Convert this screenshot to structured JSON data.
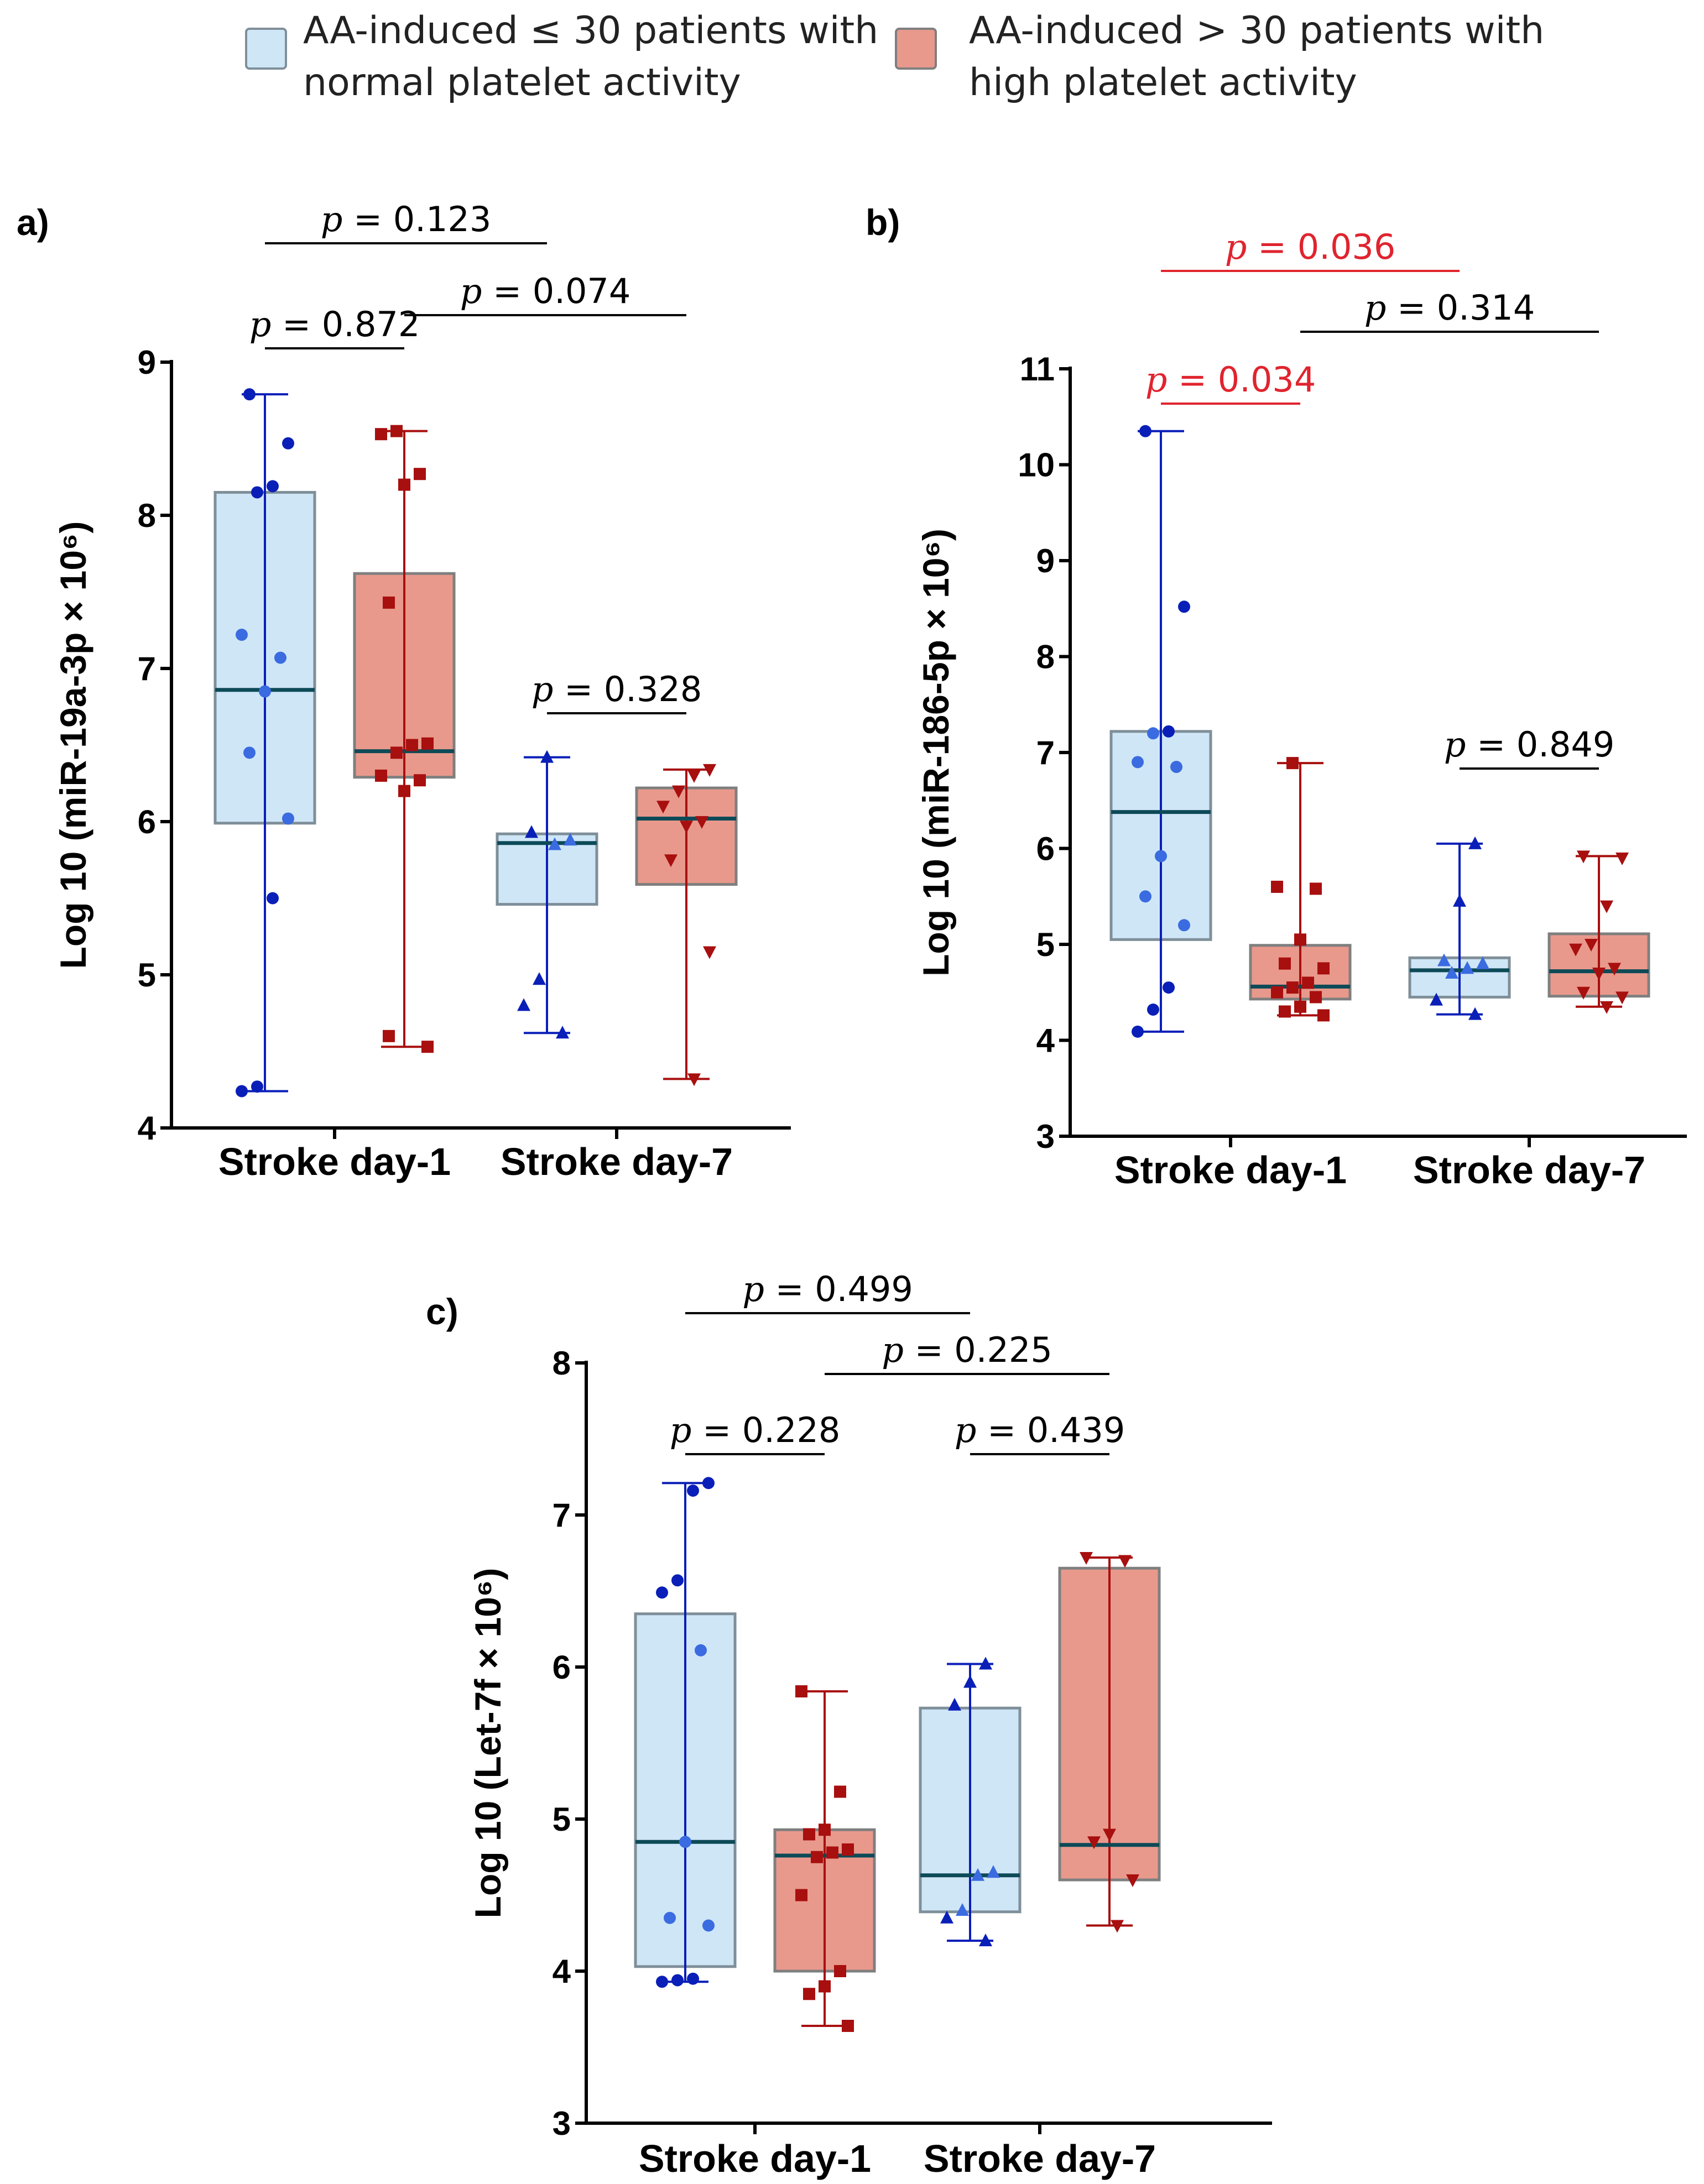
{
  "legend": {
    "items": [
      {
        "line1": "AA-induced ≤ 30 patients with",
        "line2": "normal platelet activity",
        "fill": "#cfe6f7",
        "stroke": "#7f8f99",
        "point_color": "#0a1fb8"
      },
      {
        "line1": "AA-induced > 30 patients with",
        "line2": "high platelet activity",
        "fill": "#e8998c",
        "stroke": "#7f7f7f",
        "point_color": "#a80f0f"
      }
    ]
  },
  "colors": {
    "sig": "#e0242e",
    "nonsig": "#000000",
    "median": "#0d4a57"
  },
  "chart_data": [
    {
      "panel": "a)",
      "type": "box",
      "ylabel": "Log 10 (miR-19a-3p × 10⁶)",
      "ylim": [
        4,
        9
      ],
      "yticks": [
        "4",
        "5",
        "6",
        "7",
        "8",
        "9"
      ],
      "categories": [
        "Stroke day-1",
        "Stroke day-7"
      ],
      "boxes": [
        {
          "group": 0,
          "cat": 0,
          "min": 4.24,
          "q1": 5.99,
          "median": 6.86,
          "q3": 8.15,
          "max": 8.79,
          "marker": "circle",
          "points": [
            4.24,
            4.27,
            5.5,
            6.02,
            6.45,
            6.85,
            7.07,
            7.22,
            8.15,
            8.19,
            8.47,
            8.79
          ]
        },
        {
          "group": 1,
          "cat": 0,
          "min": 4.53,
          "q1": 6.29,
          "median": 6.46,
          "q3": 7.62,
          "max": 8.55,
          "marker": "square",
          "points": [
            4.53,
            4.6,
            6.2,
            6.27,
            6.3,
            6.45,
            6.5,
            6.51,
            7.43,
            8.2,
            8.27,
            8.53,
            8.55
          ]
        },
        {
          "group": 0,
          "cat": 1,
          "min": 4.62,
          "q1": 5.46,
          "median": 5.86,
          "q3": 5.92,
          "max": 6.42,
          "marker": "triangle",
          "points": [
            4.62,
            4.8,
            4.97,
            5.85,
            5.88,
            5.93,
            6.42
          ]
        },
        {
          "group": 1,
          "cat": 1,
          "min": 4.32,
          "q1": 5.59,
          "median": 6.02,
          "q3": 6.22,
          "max": 6.34,
          "marker": "triangle-down",
          "points": [
            4.32,
            5.15,
            5.75,
            5.97,
            6.0,
            6.1,
            6.2,
            6.3,
            6.34
          ]
        }
      ],
      "comparisons": [
        {
          "label": "p = 0.123",
          "p": "p",
          "value": "= 0.123",
          "from": [
            0,
            0
          ],
          "to": [
            0,
            1
          ],
          "level": 3,
          "significant": false
        },
        {
          "label": "p = 0.074",
          "p": "p",
          "value": "= 0.074",
          "from": [
            1,
            0
          ],
          "to": [
            1,
            1
          ],
          "level": 2,
          "significant": false
        },
        {
          "label": "p = 0.872",
          "p": "p",
          "value": "= 0.872",
          "from": [
            0,
            0
          ],
          "to": [
            1,
            0
          ],
          "level": 1,
          "significant": false
        },
        {
          "label": "p = 0.328",
          "p": "p",
          "value": "= 0.328",
          "from": [
            0,
            1
          ],
          "to": [
            1,
            1
          ],
          "level": 0,
          "significant": false
        }
      ]
    },
    {
      "panel": "b)",
      "type": "box",
      "ylabel": "Log 10 (miR-186-5p × 10⁶)",
      "ylim": [
        3,
        11
      ],
      "yticks": [
        "3",
        "4",
        "5",
        "6",
        "7",
        "8",
        "9",
        "10",
        "11"
      ],
      "categories": [
        "Stroke day-1",
        "Stroke day-7"
      ],
      "boxes": [
        {
          "group": 0,
          "cat": 0,
          "min": 4.09,
          "q1": 5.05,
          "median": 6.38,
          "q3": 7.22,
          "max": 10.35,
          "marker": "circle",
          "points": [
            4.09,
            4.32,
            4.55,
            5.2,
            5.5,
            5.92,
            6.85,
            6.9,
            7.2,
            7.22,
            8.52,
            10.35
          ]
        },
        {
          "group": 1,
          "cat": 0,
          "min": 4.26,
          "q1": 4.43,
          "median": 4.56,
          "q3": 4.99,
          "max": 6.89,
          "marker": "square",
          "points": [
            4.26,
            4.3,
            4.35,
            4.45,
            4.5,
            4.55,
            4.6,
            4.75,
            4.8,
            5.05,
            5.58,
            5.6,
            6.89
          ]
        },
        {
          "group": 0,
          "cat": 1,
          "min": 4.27,
          "q1": 4.45,
          "median": 4.73,
          "q3": 4.86,
          "max": 6.05,
          "marker": "triangle",
          "points": [
            4.27,
            4.42,
            4.7,
            4.75,
            4.8,
            4.83,
            5.45,
            6.05
          ]
        },
        {
          "group": 1,
          "cat": 1,
          "min": 4.35,
          "q1": 4.46,
          "median": 4.72,
          "q3": 5.11,
          "max": 5.92,
          "marker": "triangle-down",
          "points": [
            4.35,
            4.45,
            4.5,
            4.7,
            4.75,
            4.95,
            5.0,
            5.4,
            5.9,
            5.92
          ]
        }
      ],
      "comparisons": [
        {
          "label": "p = 0.036",
          "p": "p",
          "value": "= 0.036",
          "from": [
            0,
            0
          ],
          "to": [
            0,
            1
          ],
          "level": 3,
          "significant": true
        },
        {
          "label": "p = 0.314",
          "p": "p",
          "value": "= 0.314",
          "from": [
            1,
            0
          ],
          "to": [
            1,
            1
          ],
          "level": 2,
          "significant": false
        },
        {
          "label": "p = 0.034",
          "p": "p",
          "value": "= 0.034",
          "from": [
            0,
            0
          ],
          "to": [
            1,
            0
          ],
          "level": 1,
          "significant": true
        },
        {
          "label": "p = 0.849",
          "p": "p",
          "value": "= 0.849",
          "from": [
            0,
            1
          ],
          "to": [
            1,
            1
          ],
          "level": 0,
          "significant": false
        }
      ]
    },
    {
      "panel": "c)",
      "type": "box",
      "ylabel": "Log 10 (Let-7f × 10⁶)",
      "ylim": [
        3,
        8
      ],
      "yticks": [
        "3",
        "4",
        "5",
        "6",
        "7",
        "8"
      ],
      "categories": [
        "Stroke day-1",
        "Stroke day-7"
      ],
      "boxes": [
        {
          "group": 0,
          "cat": 0,
          "min": 3.93,
          "q1": 4.03,
          "median": 4.85,
          "q3": 6.35,
          "max": 7.21,
          "marker": "circle",
          "points": [
            3.93,
            3.94,
            3.95,
            4.3,
            4.35,
            4.85,
            6.11,
            6.49,
            6.57,
            7.16,
            7.21
          ]
        },
        {
          "group": 1,
          "cat": 0,
          "min": 3.64,
          "q1": 4.0,
          "median": 4.76,
          "q3": 4.93,
          "max": 5.84,
          "marker": "square",
          "points": [
            3.64,
            3.85,
            3.9,
            4.0,
            4.5,
            4.75,
            4.78,
            4.8,
            4.9,
            4.93,
            5.18,
            5.84
          ]
        },
        {
          "group": 0,
          "cat": 1,
          "min": 4.2,
          "q1": 4.39,
          "median": 4.63,
          "q3": 5.73,
          "max": 6.02,
          "marker": "triangle",
          "points": [
            4.2,
            4.35,
            4.4,
            4.63,
            4.65,
            5.75,
            5.9,
            6.02
          ]
        },
        {
          "group": 1,
          "cat": 1,
          "min": 4.3,
          "q1": 4.6,
          "median": 4.83,
          "q3": 6.65,
          "max": 6.72,
          "marker": "triangle-down",
          "points": [
            4.3,
            4.6,
            4.85,
            4.9,
            6.7,
            6.72
          ]
        }
      ],
      "comparisons": [
        {
          "label": "p = 0.499",
          "p": "p",
          "value": "= 0.499",
          "from": [
            0,
            0
          ],
          "to": [
            0,
            1
          ],
          "level": 3,
          "significant": false
        },
        {
          "label": "p = 0.225",
          "p": "p",
          "value": "= 0.225",
          "from": [
            1,
            0
          ],
          "to": [
            1,
            1
          ],
          "level": 2,
          "significant": false
        },
        {
          "label": "p = 0.228",
          "p": "p",
          "value": "= 0.228",
          "from": [
            0,
            0
          ],
          "to": [
            1,
            0
          ],
          "level": 1,
          "significant": false
        },
        {
          "label": "p = 0.439",
          "p": "p",
          "value": "= 0.439",
          "from": [
            0,
            1
          ],
          "to": [
            1,
            1
          ],
          "level": 0,
          "significant": false
        }
      ]
    }
  ]
}
